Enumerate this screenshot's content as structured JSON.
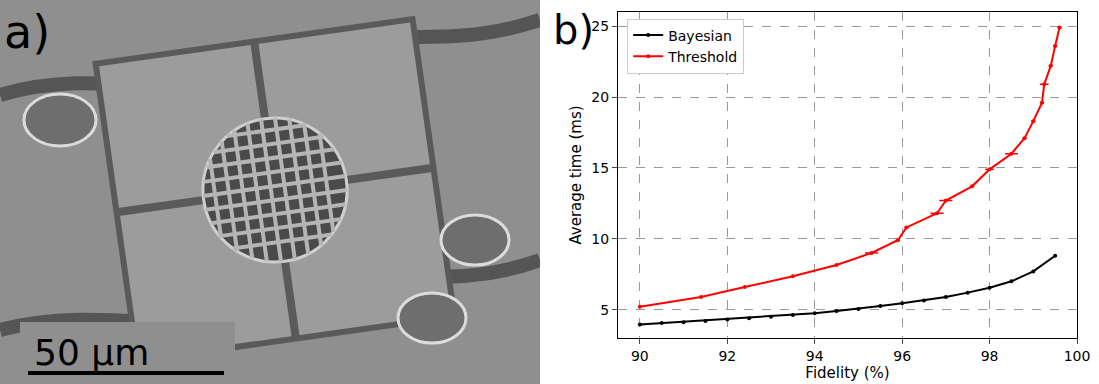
{
  "image_panel": {
    "panel_label": "a)",
    "scale_bar": "50 µm"
  },
  "chart_data": {
    "type": "line",
    "panel_label": "b)",
    "x_label": "Fidelity (%)",
    "y_label": "Average time (ms)",
    "xlim": [
      89.5,
      100
    ],
    "xticks": [
      90,
      92,
      94,
      96,
      98,
      100
    ],
    "ylim": [
      3,
      26
    ],
    "yticks": [
      5,
      10,
      15,
      20,
      25
    ],
    "grid": true,
    "legend": "upper left",
    "series": [
      {
        "name": "Bayesian",
        "color": "#000000",
        "marker": "circle",
        "line_style": "solid",
        "x": [
          90,
          90.5,
          91,
          91.5,
          92,
          92.5,
          93,
          93.5,
          94,
          94.5,
          95,
          95.5,
          96,
          96.5,
          97,
          97.5,
          98,
          98.5,
          99,
          99.5
        ],
        "values": [
          3.95,
          4.05,
          4.12,
          4.2,
          4.3,
          4.4,
          4.5,
          4.62,
          4.75,
          4.9,
          5.05,
          5.25,
          5.45,
          5.65,
          5.9,
          6.2,
          6.55,
          7.0,
          7.7,
          8.8
        ]
      },
      {
        "name": "Threshold",
        "color": "#ff0000",
        "marker": "circle",
        "line_style": "solid",
        "x": [
          90,
          91.4,
          92.4,
          93.5,
          94.5,
          95.3,
          95.9,
          96.1,
          96.8,
          97.0,
          97.6,
          98.0,
          98.5,
          98.8,
          99.0,
          99.2,
          99.25,
          99.4,
          99.5,
          99.6
        ],
        "values": [
          5.2,
          5.9,
          6.6,
          7.35,
          8.15,
          9.0,
          9.9,
          10.8,
          11.8,
          12.7,
          13.7,
          14.9,
          16.0,
          17.1,
          18.3,
          19.6,
          20.9,
          22.2,
          23.6,
          24.9
        ],
        "x_error": [
          0.02,
          0.02,
          0.02,
          0.02,
          0.02,
          0.15,
          0.05,
          0.05,
          0.15,
          0.15,
          0.05,
          0.1,
          0.15,
          0.05,
          0.05,
          0.05,
          0.1,
          0.05,
          0.05,
          0.05
        ]
      }
    ]
  }
}
